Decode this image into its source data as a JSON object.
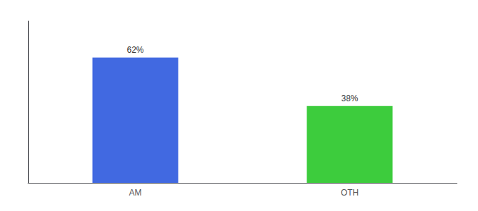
{
  "chart_data": {
    "type": "bar",
    "categories": [
      "AM",
      "OTH"
    ],
    "values": [
      62,
      38
    ],
    "value_labels": [
      "62%",
      "38%"
    ],
    "colors": [
      "#4169e1",
      "#3dcc3d"
    ],
    "ylim": [
      0,
      80
    ],
    "data_labels": true,
    "tick_labels": "x",
    "grid": false
  }
}
